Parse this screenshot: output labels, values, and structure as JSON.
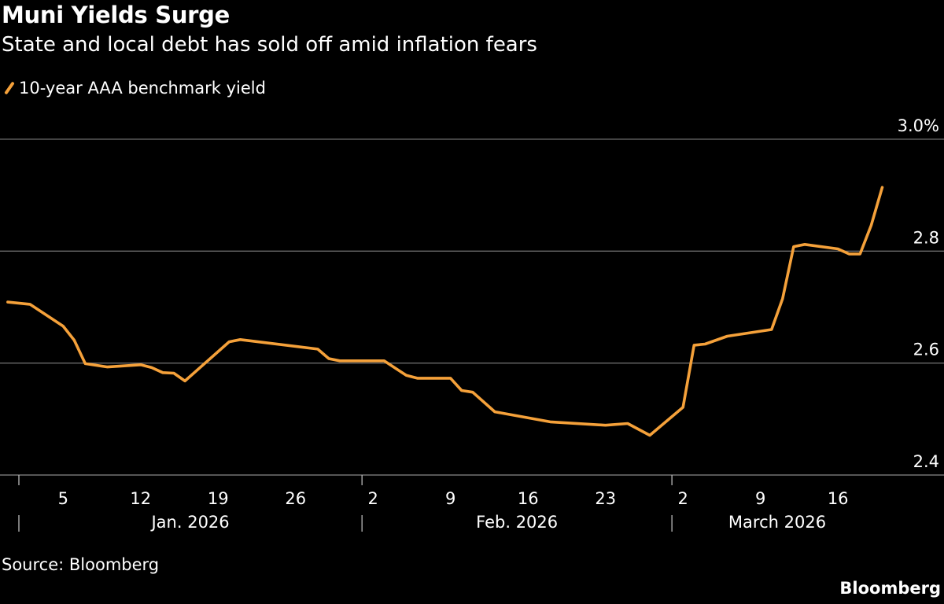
{
  "title": "Muni Yields Surge",
  "subtitle": "State and local debt has sold off amid inflation fears",
  "source": "Source: Bloomberg",
  "logo": "Bloomberg",
  "chart_data": {
    "type": "line",
    "title": "Muni Yields Surge",
    "subtitle": "State and local debt has sold off amid inflation fears",
    "legend_position": "top-left",
    "grid": true,
    "ylim": [
      2.4,
      3.0
    ],
    "y_ticks": [
      {
        "value": 2.4,
        "label": "2.4"
      },
      {
        "value": 2.6,
        "label": "2.6"
      },
      {
        "value": 2.8,
        "label": "2.8"
      },
      {
        "value": 3.0,
        "label": "3.0%"
      }
    ],
    "x_ticks": [
      {
        "date": "2026-01-05",
        "label": "5"
      },
      {
        "date": "2026-01-12",
        "label": "12"
      },
      {
        "date": "2026-01-19",
        "label": "19"
      },
      {
        "date": "2026-01-26",
        "label": "26"
      },
      {
        "date": "2026-02-02",
        "label": "2"
      },
      {
        "date": "2026-02-09",
        "label": "9"
      },
      {
        "date": "2026-02-16",
        "label": "16"
      },
      {
        "date": "2026-02-23",
        "label": "23"
      },
      {
        "date": "2026-03-02",
        "label": "2"
      },
      {
        "date": "2026-03-09",
        "label": "9"
      },
      {
        "date": "2026-03-16",
        "label": "16"
      }
    ],
    "month_labels": [
      {
        "start": "2026-01-01",
        "label": "Jan. 2026"
      },
      {
        "start": "2026-02-01",
        "label": "Feb. 2026"
      },
      {
        "start": "2026-03-01",
        "label": "March 2026"
      }
    ],
    "series": [
      {
        "name": "10-year AAA benchmark yield",
        "color": "#f5a13a",
        "points": [
          [
            "2025-12-31",
            2.709
          ],
          [
            "2026-01-02",
            2.705
          ],
          [
            "2026-01-05",
            2.666
          ],
          [
            "2026-01-06",
            2.641
          ],
          [
            "2026-01-07",
            2.599
          ],
          [
            "2026-01-09",
            2.593
          ],
          [
            "2026-01-12",
            2.597
          ],
          [
            "2026-01-13",
            2.592
          ],
          [
            "2026-01-14",
            2.583
          ],
          [
            "2026-01-15",
            2.582
          ],
          [
            "2026-01-16",
            2.568
          ],
          [
            "2026-01-20",
            2.638
          ],
          [
            "2026-01-21",
            2.642
          ],
          [
            "2026-01-28",
            2.625
          ],
          [
            "2026-01-29",
            2.608
          ],
          [
            "2026-01-30",
            2.604
          ],
          [
            "2026-02-03",
            2.604
          ],
          [
            "2026-02-05",
            2.578
          ],
          [
            "2026-02-06",
            2.573
          ],
          [
            "2026-02-09",
            2.573
          ],
          [
            "2026-02-10",
            2.551
          ],
          [
            "2026-02-11",
            2.548
          ],
          [
            "2026-02-13",
            2.513
          ],
          [
            "2026-02-18",
            2.495
          ],
          [
            "2026-02-23",
            2.489
          ],
          [
            "2026-02-25",
            2.492
          ],
          [
            "2026-02-27",
            2.471
          ],
          [
            "2026-03-02",
            2.521
          ],
          [
            "2026-03-03",
            2.632
          ],
          [
            "2026-03-04",
            2.634
          ],
          [
            "2026-03-06",
            2.648
          ],
          [
            "2026-03-10",
            2.66
          ],
          [
            "2026-03-11",
            2.715
          ],
          [
            "2026-03-12",
            2.808
          ],
          [
            "2026-03-13",
            2.812
          ],
          [
            "2026-03-16",
            2.804
          ],
          [
            "2026-03-17",
            2.795
          ],
          [
            "2026-03-18",
            2.795
          ],
          [
            "2026-03-19",
            2.846
          ],
          [
            "2026-03-20",
            2.914
          ]
        ]
      }
    ]
  }
}
